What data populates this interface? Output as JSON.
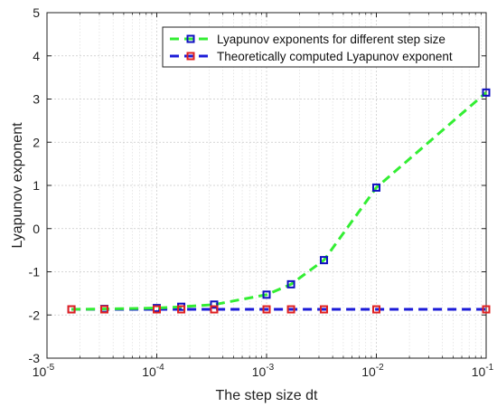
{
  "chart_data": {
    "type": "line",
    "xscale": "log",
    "xlim": [
      1e-05,
      0.1
    ],
    "ylim": [
      -3,
      5
    ],
    "grid": true,
    "legend_position": "top-right",
    "xlabel": "The step size dt",
    "ylabel": "Lyapunov exponent",
    "x_ticks": [
      {
        "value": 1e-05,
        "base": "10",
        "exp": "-5"
      },
      {
        "value": 0.0001,
        "base": "10",
        "exp": "-4"
      },
      {
        "value": 0.001,
        "base": "10",
        "exp": "-3"
      },
      {
        "value": 0.01,
        "base": "10",
        "exp": "-2"
      },
      {
        "value": 0.1,
        "base": "10",
        "exp": "-1"
      }
    ],
    "y_ticks": [
      -3,
      -2,
      -1,
      0,
      1,
      2,
      3,
      4,
      5
    ],
    "series": [
      {
        "name": "Lyapunov exponents for different step size",
        "line_color": "#33ee33",
        "marker_color": "#1010c0",
        "x": [
          1.67e-05,
          3.33e-05,
          0.0001,
          0.000167,
          0.000333,
          0.001,
          0.00167,
          0.00333,
          0.01,
          0.1
        ],
        "y": [
          -1.87,
          -1.86,
          -1.84,
          -1.81,
          -1.76,
          -1.53,
          -1.29,
          -0.73,
          0.95,
          3.15
        ]
      },
      {
        "name": "Theoretically computed Lyapunov exponent",
        "line_color": "#1b1bd8",
        "marker_color": "#e02020",
        "x": [
          1.67e-05,
          3.33e-05,
          0.0001,
          0.000167,
          0.000333,
          0.001,
          0.00167,
          0.00333,
          0.01,
          0.1
        ],
        "y": [
          -1.87,
          -1.87,
          -1.87,
          -1.87,
          -1.87,
          -1.87,
          -1.87,
          -1.87,
          -1.87,
          -1.87
        ]
      }
    ]
  }
}
